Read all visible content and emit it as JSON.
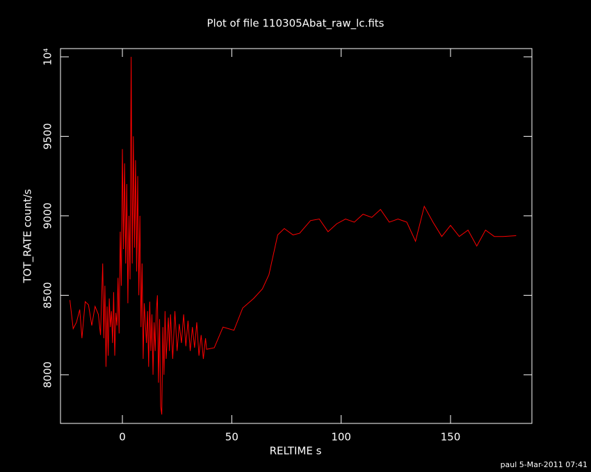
{
  "chart_data": {
    "type": "line",
    "title": "Plot of file 110305Abat_raw_lc.fits",
    "x_label": "RELTIME  s",
    "y_label": "TOT_RATE  count/s",
    "footer": "paul  5-Mar-2011 07:41",
    "xlim": [
      -28.3,
      187.2
    ],
    "ylim": [
      7694,
      10052
    ],
    "xticks": [
      0,
      50,
      100,
      150
    ],
    "yticks": [
      8000,
      8500,
      9000,
      9500,
      {
        "value": 10000,
        "label": "10⁴"
      }
    ],
    "x": [
      -24,
      -22.5,
      -21,
      -19.5,
      -18.5,
      -17,
      -15.5,
      -14,
      -12.5,
      -11,
      -10,
      -9,
      -8.5,
      -8,
      -7.5,
      -7,
      -6.5,
      -6,
      -5.5,
      -5,
      -4.5,
      -4,
      -3.5,
      -3,
      -2.5,
      -2,
      -1.5,
      -1,
      -0.5,
      0,
      0.5,
      1,
      1.5,
      2,
      2.5,
      3,
      3.5,
      4,
      4.5,
      5,
      5.5,
      6,
      6.5,
      7,
      7.5,
      8,
      8.5,
      9,
      9.5,
      10,
      11,
      11.5,
      12,
      12.5,
      13,
      13.5,
      14,
      14.5,
      15,
      15.5,
      16,
      16.5,
      17,
      17.5,
      18,
      18.5,
      19,
      19.5,
      20,
      21,
      21.5,
      22,
      23,
      24,
      25,
      26,
      27,
      28,
      29,
      30,
      31,
      32,
      33,
      34,
      35,
      36,
      37,
      38,
      38.5,
      42,
      46,
      51,
      55,
      60,
      64,
      67,
      71,
      74,
      78,
      81,
      86,
      90,
      94,
      98,
      102,
      106,
      110,
      114,
      118,
      122,
      126,
      130,
      134,
      138,
      142,
      146,
      150,
      154,
      158,
      162,
      166,
      170,
      174,
      180
    ],
    "series": [
      {
        "name": "TOT_RATE",
        "color": "#ff0000",
        "values": [
          8470,
          8290,
          8330,
          8410,
          8230,
          8460,
          8440,
          8310,
          8430,
          8380,
          8250,
          8700,
          8230,
          8560,
          8050,
          8430,
          8120,
          8480,
          8300,
          8400,
          8200,
          8520,
          8120,
          8390,
          8310,
          8610,
          8260,
          8900,
          8560,
          9420,
          8790,
          9330,
          8700,
          9200,
          8450,
          9000,
          8600,
          10000,
          8700,
          9500,
          8800,
          9350,
          8650,
          9250,
          8500,
          9000,
          8300,
          8700,
          8100,
          8450,
          8200,
          8400,
          8050,
          8460,
          8150,
          8380,
          8000,
          8330,
          8150,
          8400,
          8500,
          7950,
          8350,
          7800,
          7750,
          8300,
          8000,
          8400,
          8100,
          8360,
          8150,
          8380,
          8100,
          8400,
          8150,
          8320,
          8200,
          8380,
          8180,
          8340,
          8150,
          8300,
          8170,
          8330,
          8120,
          8250,
          8100,
          8230,
          8160,
          8170,
          8300,
          8280,
          8420,
          8480,
          8540,
          8630,
          8880,
          8920,
          8880,
          8890,
          8970,
          8980,
          8900,
          8950,
          8980,
          8960,
          9010,
          8990,
          9040,
          8960,
          8980,
          8960,
          8840,
          9060,
          8960,
          8870,
          8940,
          8870,
          8910,
          8810,
          8910,
          8870,
          8870,
          8875
        ]
      }
    ]
  }
}
